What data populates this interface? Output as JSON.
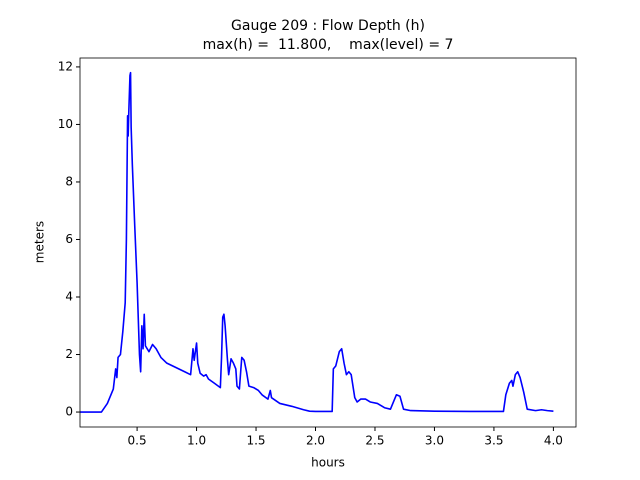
{
  "chart_data": {
    "type": "line",
    "title": "Gauge 209 : Flow Depth (h)",
    "subtitle": "max(h) =  11.800,    max(level) = 7",
    "xlabel": "hours",
    "ylabel": "meters",
    "xlim": [
      0.02,
      4.19
    ],
    "ylim": [
      -0.52,
      12.31
    ],
    "xticks": [
      0.5,
      {
        "value": 1,
        "label": "1.0"
      },
      1.5,
      {
        "value": 2,
        "label": "2.0"
      },
      2.5,
      {
        "value": 3,
        "label": "3.0"
      },
      3.5,
      {
        "value": 4,
        "label": "4.0"
      }
    ],
    "yticks": [
      0,
      2,
      4,
      6,
      8,
      10,
      12
    ],
    "grid": false,
    "x": [
      0.02,
      0.2,
      0.25,
      0.3,
      0.32,
      0.33,
      0.34,
      0.36,
      0.38,
      0.4,
      0.41,
      0.42,
      0.425,
      0.43,
      0.44,
      0.445,
      0.45,
      0.46,
      0.48,
      0.5,
      0.52,
      0.53,
      0.54,
      0.55,
      0.56,
      0.57,
      0.6,
      0.63,
      0.66,
      0.7,
      0.75,
      0.8,
      0.85,
      0.9,
      0.95,
      0.97,
      0.98,
      0.99,
      1.0,
      1.01,
      1.03,
      1.06,
      1.08,
      1.1,
      1.15,
      1.2,
      1.21,
      1.22,
      1.23,
      1.24,
      1.26,
      1.27,
      1.29,
      1.31,
      1.33,
      1.34,
      1.36,
      1.38,
      1.4,
      1.42,
      1.44,
      1.48,
      1.52,
      1.55,
      1.6,
      1.62,
      1.63,
      1.7,
      1.8,
      1.9,
      1.95,
      2.0,
      2.1,
      2.14,
      2.15,
      2.17,
      2.2,
      2.22,
      2.24,
      2.26,
      2.28,
      2.3,
      2.33,
      2.35,
      2.38,
      2.42,
      2.46,
      2.52,
      2.58,
      2.63,
      2.66,
      2.68,
      2.71,
      2.74,
      2.8,
      3.0,
      3.3,
      3.58,
      3.6,
      3.63,
      3.65,
      3.66,
      3.68,
      3.7,
      3.72,
      3.75,
      3.78,
      3.85,
      3.9,
      3.95,
      4.0
    ],
    "series": [
      {
        "name": "h",
        "color": "#0000ff",
        "values": [
          0,
          0,
          0.3,
          0.8,
          1.5,
          1.2,
          1.9,
          2.0,
          2.8,
          3.8,
          6,
          10.3,
          9.6,
          10.4,
          11.7,
          11.8,
          9.9,
          8.6,
          6.5,
          4.5,
          2.0,
          1.4,
          3.0,
          2.2,
          3.4,
          2.3,
          2.1,
          2.35,
          2.2,
          1.9,
          1.7,
          1.6,
          1.5,
          1.4,
          1.3,
          2.2,
          1.8,
          2.1,
          2.4,
          1.7,
          1.35,
          1.25,
          1.3,
          1.15,
          1.0,
          0.85,
          1.9,
          3.3,
          3.4,
          3.0,
          1.8,
          1.3,
          1.85,
          1.7,
          1.5,
          0.9,
          0.8,
          1.9,
          1.8,
          1.4,
          0.9,
          0.85,
          0.75,
          0.6,
          0.45,
          0.75,
          0.5,
          0.3,
          0.2,
          0.08,
          0.03,
          0.02,
          0.02,
          0.02,
          1.5,
          1.6,
          2.1,
          2.2,
          1.7,
          1.3,
          1.4,
          1.3,
          0.5,
          0.35,
          0.45,
          0.45,
          0.35,
          0.3,
          0.15,
          0.1,
          0.4,
          0.6,
          0.55,
          0.1,
          0.05,
          0.03,
          0.02,
          0.02,
          0.6,
          1.0,
          1.1,
          0.9,
          1.3,
          1.4,
          1.2,
          0.7,
          0.1,
          0.05,
          0.08,
          0.05,
          0.03
        ]
      }
    ]
  }
}
